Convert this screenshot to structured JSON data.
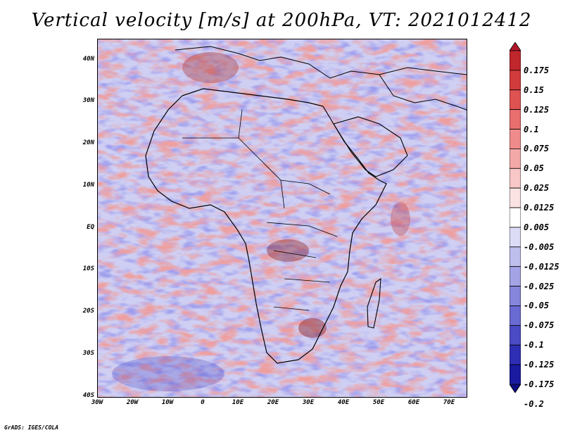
{
  "title": "Vertical velocity [m/s] at 200hPa, VT: 2021012412",
  "x_ticks": [
    "30W",
    "20W",
    "10W",
    "0",
    "10E",
    "20E",
    "30E",
    "40E",
    "50E",
    "60E",
    "70E"
  ],
  "y_ticks": [
    "40N",
    "30N",
    "20N",
    "10N",
    "EQ",
    "10S",
    "20S",
    "30S",
    "40S"
  ],
  "footer": "GrADS: IGES/COLA",
  "colorbar": {
    "labels": [
      "0.175",
      "0.15",
      "0.125",
      "0.1",
      "0.075",
      "0.05",
      "0.025",
      "0.0125",
      "0.005",
      "-0.005",
      "-0.0125",
      "-0.025",
      "-0.05",
      "-0.075",
      "-0.1",
      "-0.125",
      "-0.175",
      "-0.2"
    ],
    "colors": [
      "#b2182b",
      "#c0272d",
      "#d23b3b",
      "#df5252",
      "#e96e6e",
      "#f08b8b",
      "#f4a9a9",
      "#f8c7c7",
      "#fbe3e3",
      "#ffffff",
      "#dcdcf6",
      "#bfbfee",
      "#a3a3e6",
      "#8686dd",
      "#6a6ad3",
      "#4b4bc6",
      "#2e2eb5",
      "#1a1aa0",
      "#0d0d80"
    ]
  },
  "colors": {
    "positive": "#d94a4a",
    "negative": "#6d6de0",
    "background": "#c9c9f2",
    "coastline": "#000000"
  }
}
